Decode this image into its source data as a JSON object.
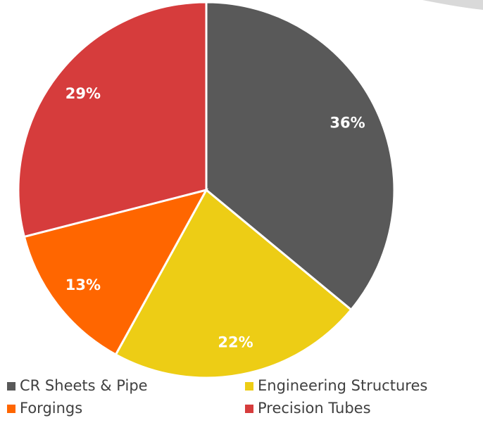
{
  "chart_data": {
    "type": "pie",
    "categories": [
      "CR Sheets & Pipe",
      "Engineering Structures",
      "Forgings",
      "Precision Tubes"
    ],
    "values": [
      36,
      22,
      13,
      29
    ],
    "value_labels": [
      "36%",
      "22%",
      "13%",
      "29%"
    ],
    "colors": [
      "#595959",
      "#edcd15",
      "#ff6600",
      "#d63c3c"
    ],
    "legend": "bottom"
  }
}
